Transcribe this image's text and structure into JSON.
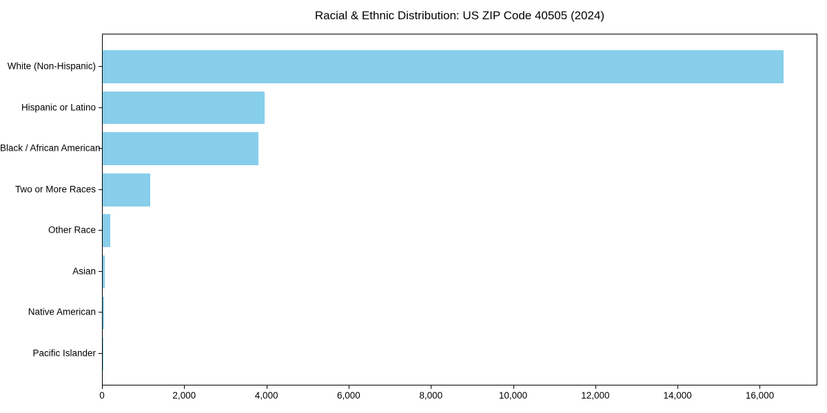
{
  "figure": {
    "title": "Racial & Ethnic Distribution: US ZIP Code 40505 (2024)"
  },
  "chart_data": {
    "type": "bar",
    "orientation": "horizontal",
    "title": "Racial & Ethnic Distribution: US ZIP Code 40505 (2024)",
    "xlabel": "",
    "ylabel": "",
    "categories": [
      "White (Non-Hispanic)",
      "Hispanic or Latino",
      "Black / African American",
      "Two or More Races",
      "Other Race",
      "Asian",
      "Native American",
      "Pacific Islander"
    ],
    "values": [
      16570,
      3935,
      3785,
      1155,
      190,
      55,
      30,
      8
    ],
    "xlim": [
      0,
      17400
    ],
    "xticks": {
      "values": [
        0,
        2000,
        4000,
        6000,
        8000,
        10000,
        12000,
        14000,
        16000
      ],
      "labels": [
        "0",
        "2,000",
        "4,000",
        "6,000",
        "8,000",
        "10,000",
        "12,000",
        "14,000",
        "16,000"
      ]
    },
    "grid": false,
    "legend": "none",
    "bar_color": "#87CEEB",
    "axis_color": "#000000",
    "text_color": "#000000",
    "background_color": "#FFFFFF"
  }
}
